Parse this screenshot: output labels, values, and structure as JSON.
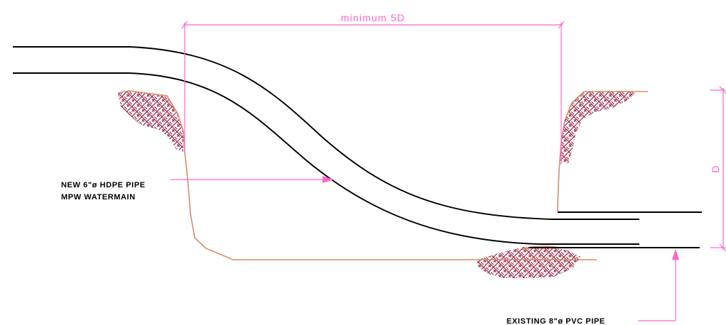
{
  "colors": {
    "background": "#ffffff",
    "pipe": "#000000",
    "dimension": "#ff66cc",
    "excavation": "#d9896b",
    "hatch": "#9a2d4a"
  },
  "dimensions": {
    "horizontal_label": "minimum  5D",
    "vertical_label": "D"
  },
  "labels": {
    "new_pipe_line1": "NEW 6\"ø HDPE PIPE",
    "new_pipe_line2": "MPW WATERMAIN",
    "existing_pipe": "EXISTING 8\"ø PVC PIPE"
  }
}
